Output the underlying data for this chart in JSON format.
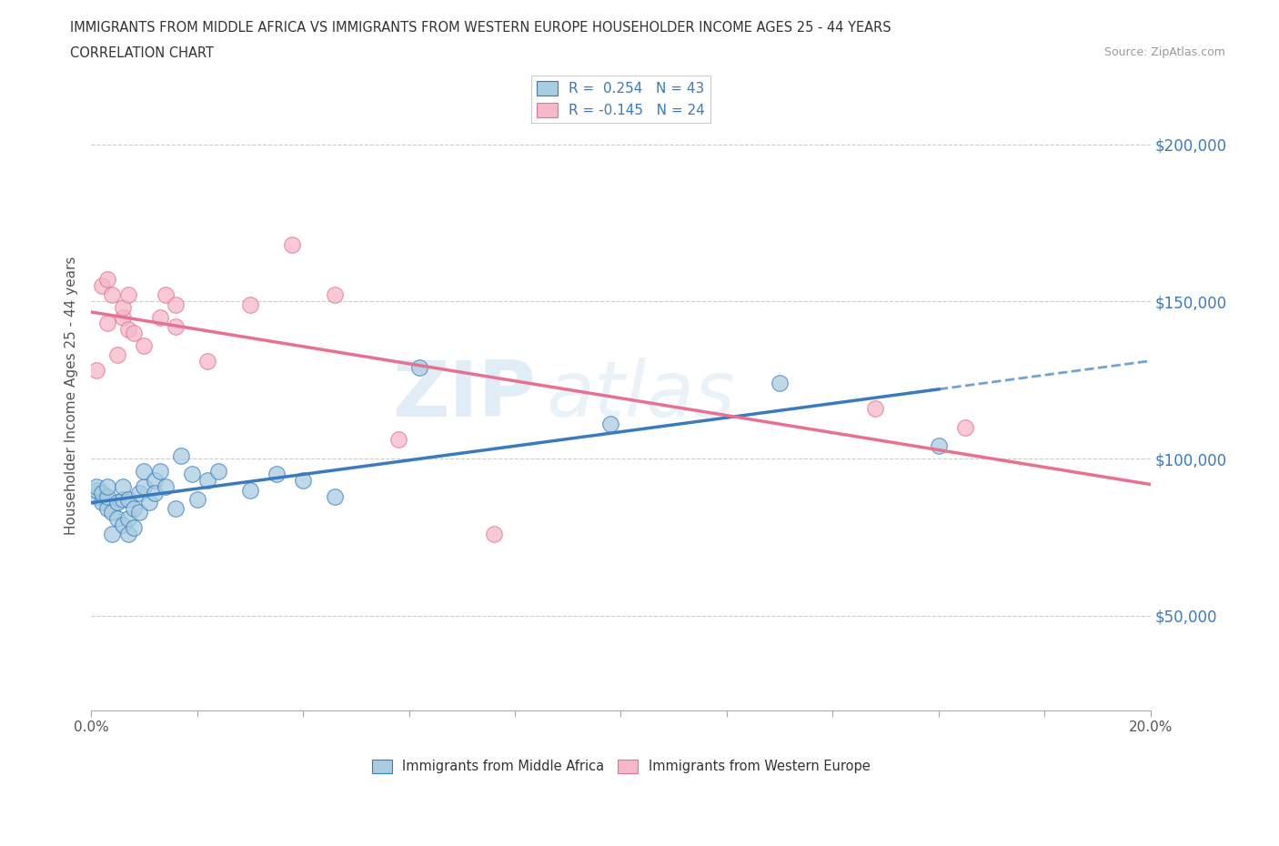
{
  "title_line1": "IMMIGRANTS FROM MIDDLE AFRICA VS IMMIGRANTS FROM WESTERN EUROPE HOUSEHOLDER INCOME AGES 25 - 44 YEARS",
  "title_line2": "CORRELATION CHART",
  "source_text": "Source: ZipAtlas.com",
  "ylabel": "Householder Income Ages 25 - 44 years",
  "xlim": [
    0.0,
    0.2
  ],
  "ylim": [
    20000,
    220000
  ],
  "xticks": [
    0.0,
    0.02,
    0.04,
    0.06,
    0.08,
    0.1,
    0.12,
    0.14,
    0.16,
    0.18,
    0.2
  ],
  "ytick_positions": [
    50000,
    100000,
    150000,
    200000
  ],
  "ytick_labels": [
    "$50,000",
    "$100,000",
    "$150,000",
    "$200,000"
  ],
  "legend_R1": "R =  0.254",
  "legend_N1": "N = 43",
  "legend_R2": "R = -0.145",
  "legend_N2": "N = 24",
  "color_blue": "#a8cce0",
  "color_pink": "#f4b8c8",
  "color_blue_line": "#3a7abf",
  "color_pink_line": "#e87090",
  "blue_scatter_x": [
    0.001,
    0.001,
    0.001,
    0.002,
    0.002,
    0.003,
    0.003,
    0.003,
    0.004,
    0.004,
    0.005,
    0.005,
    0.006,
    0.006,
    0.006,
    0.007,
    0.007,
    0.007,
    0.008,
    0.008,
    0.009,
    0.009,
    0.01,
    0.01,
    0.011,
    0.012,
    0.012,
    0.013,
    0.014,
    0.016,
    0.017,
    0.019,
    0.02,
    0.022,
    0.024,
    0.03,
    0.035,
    0.04,
    0.046,
    0.062,
    0.098,
    0.13,
    0.16
  ],
  "blue_scatter_y": [
    88000,
    90000,
    91000,
    86000,
    89000,
    84000,
    88000,
    91000,
    76000,
    83000,
    81000,
    86000,
    79000,
    87000,
    91000,
    76000,
    81000,
    87000,
    78000,
    84000,
    83000,
    89000,
    91000,
    96000,
    86000,
    93000,
    89000,
    96000,
    91000,
    84000,
    101000,
    95000,
    87000,
    93000,
    96000,
    90000,
    95000,
    93000,
    88000,
    129000,
    111000,
    124000,
    104000
  ],
  "pink_scatter_x": [
    0.001,
    0.002,
    0.003,
    0.003,
    0.004,
    0.005,
    0.006,
    0.006,
    0.007,
    0.007,
    0.008,
    0.01,
    0.013,
    0.014,
    0.016,
    0.016,
    0.022,
    0.03,
    0.038,
    0.046,
    0.058,
    0.076,
    0.148,
    0.165
  ],
  "pink_scatter_y": [
    128000,
    155000,
    157000,
    143000,
    152000,
    133000,
    145000,
    148000,
    141000,
    152000,
    140000,
    136000,
    145000,
    152000,
    142000,
    149000,
    131000,
    149000,
    168000,
    152000,
    106000,
    76000,
    116000,
    110000
  ],
  "watermark_zip": "ZIP",
  "watermark_atlas": "atlas",
  "background_color": "#ffffff",
  "grid_color": "#cccccc"
}
